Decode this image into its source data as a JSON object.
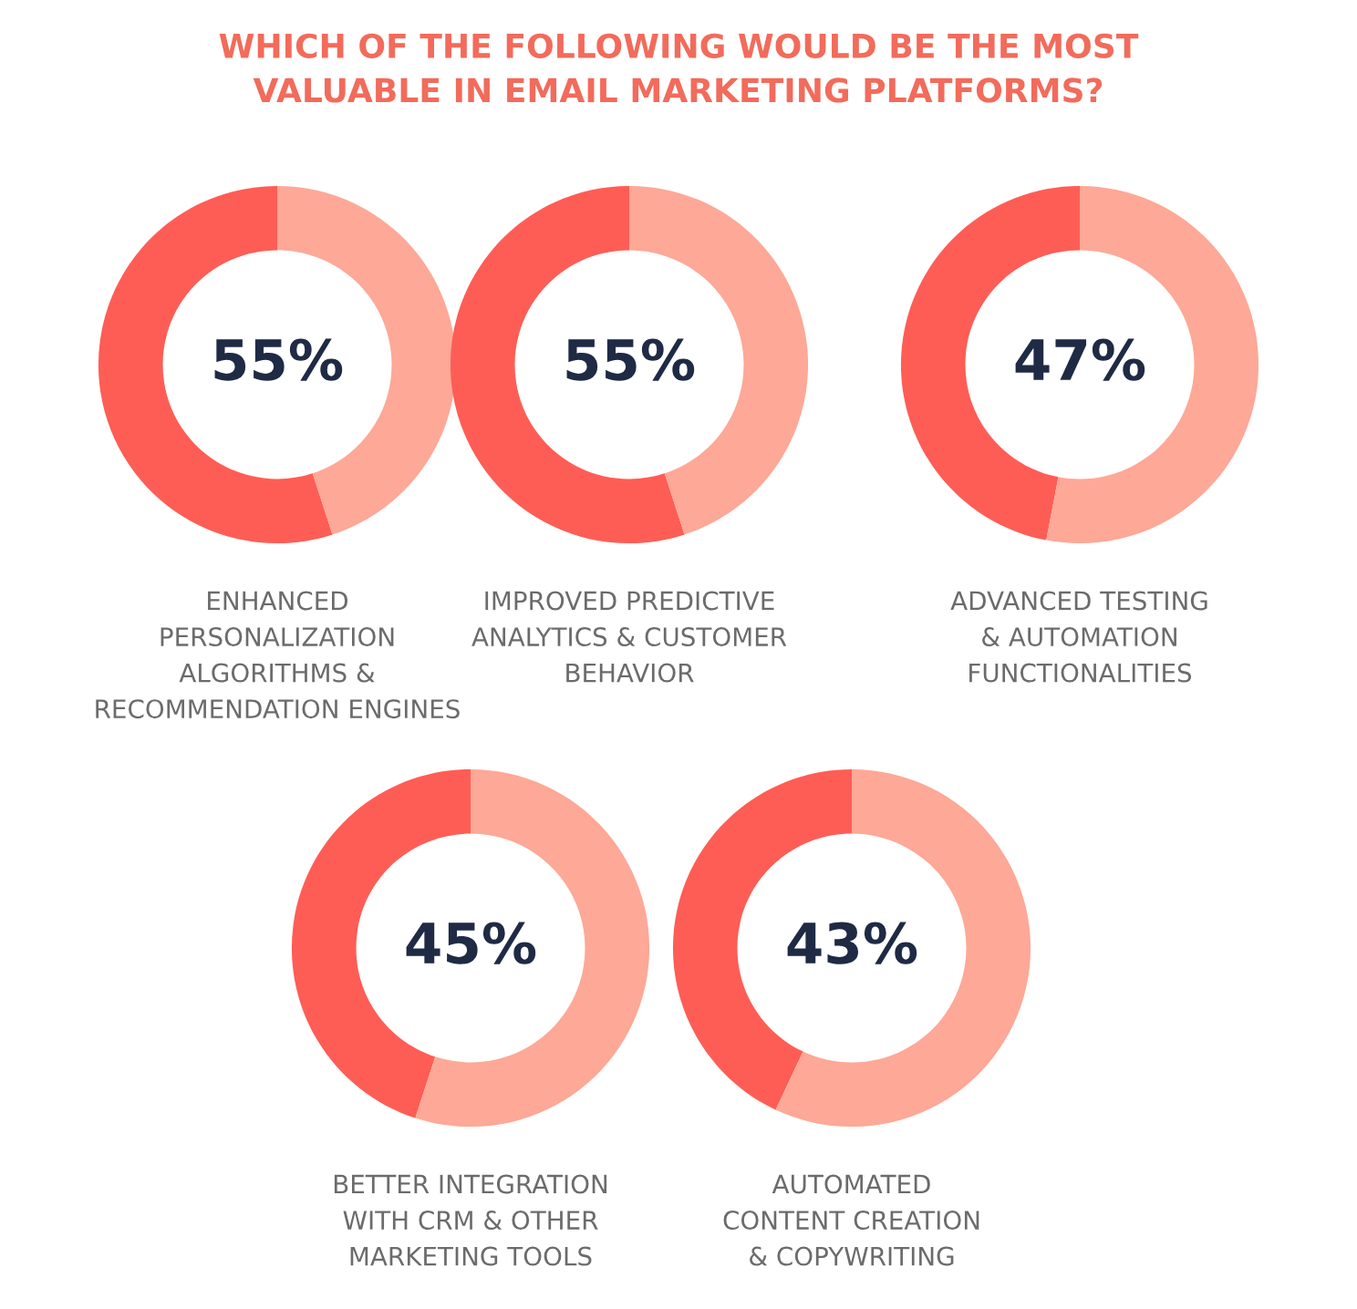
{
  "chart_data": [
    {
      "type": "other",
      "title": "WHICH OF THE FOLLOWING WOULD BE THE MOST\nVALUABLE IN EMAIL MARKETING PLATFORMS?"
    },
    {
      "type": "donut",
      "title": "ENHANCED\nPERSONALIZATION\nALGORITHMS &\nRECOMMENDATION ENGINES",
      "categories": [
        null,
        null
      ],
      "values": [
        55,
        45
      ],
      "colors": [
        "#fe5d55",
        "#fea897"
      ],
      "annotations": [
        "55%"
      ]
    },
    {
      "type": "donut",
      "title": "IMPROVED PREDICTIVE\nANALYTICS & CUSTOMER\nBEHAVIOR",
      "categories": [
        null,
        null
      ],
      "values": [
        55,
        45
      ],
      "colors": [
        "#fe5d55",
        "#fea897"
      ],
      "annotations": [
        "55%"
      ]
    },
    {
      "type": "donut",
      "title": "ADVANCED TESTING\n& AUTOMATION\nFUNCTIONALITIES",
      "categories": [
        null,
        null
      ],
      "values": [
        47,
        53
      ],
      "colors": [
        "#fe5d55",
        "#fea897"
      ],
      "annotations": [
        "47%"
      ]
    },
    {
      "type": "donut",
      "title": "BETTER INTEGRATION\nWITH CRM & OTHER\nMARKETING TOOLS",
      "categories": [
        null,
        null
      ],
      "values": [
        45,
        55
      ],
      "colors": [
        "#fe5d55",
        "#fea897"
      ],
      "annotations": [
        "45%"
      ]
    },
    {
      "type": "donut",
      "title": "AUTOMATED\nCONTENT CREATION\n& COPYWRITING",
      "categories": [
        null,
        null
      ],
      "values": [
        43,
        57
      ],
      "colors": [
        "#fe5d55",
        "#fea897"
      ],
      "annotations": [
        "43%"
      ]
    }
  ]
}
